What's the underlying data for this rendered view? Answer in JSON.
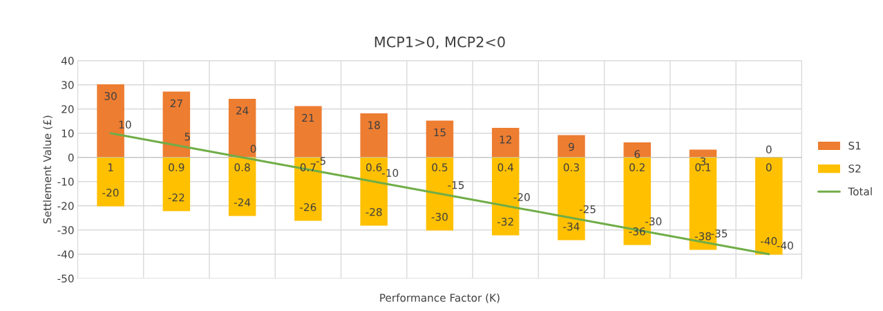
{
  "chart_data": {
    "type": "bar",
    "title": "MCP1>0, MCP2<0",
    "xlabel": "Performance Factor (K)",
    "ylabel": "Settlement Value (£)",
    "categories": [
      "1",
      "0.9",
      "0.8",
      "0.7",
      "0.6",
      "0.5",
      "0.4",
      "0.3",
      "0.2",
      "0.1",
      "0"
    ],
    "stacked": true,
    "series": [
      {
        "name": "S1",
        "color": "#ed7d31",
        "values": [
          30,
          27,
          24,
          21,
          18,
          15,
          12,
          9,
          6,
          3,
          0
        ]
      },
      {
        "name": "S2",
        "color": "#ffc000",
        "values": [
          -20,
          -22,
          -24,
          -26,
          -28,
          -30,
          -32,
          -34,
          -36,
          -38,
          -40
        ]
      },
      {
        "name": "Total",
        "type": "line",
        "color": "#70ad47",
        "values": [
          10,
          5,
          0,
          -5,
          -10,
          -15,
          -20,
          -25,
          -30,
          -35,
          -40
        ]
      }
    ],
    "ylim": [
      -50,
      40
    ],
    "yticks": [
      -50,
      -40,
      -30,
      -20,
      -10,
      0,
      10,
      20,
      30,
      40
    ],
    "grid": true,
    "legend": "right",
    "data_labels": true,
    "marker": "none",
    "line_style": "solid"
  }
}
